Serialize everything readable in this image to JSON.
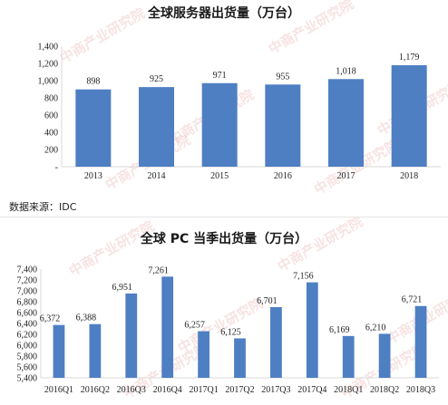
{
  "watermark": "中商产业研究院",
  "source": "数据来源：IDC",
  "colors": {
    "bar": "#4e7fc3",
    "axis": "#d9d9d9",
    "text": "#222222"
  },
  "chart_data": [
    {
      "type": "bar",
      "title": "全球服务器出货量（万台）",
      "categories": [
        "2013",
        "2014",
        "2015",
        "2016",
        "2017",
        "2018"
      ],
      "values": [
        898,
        925,
        971,
        955,
        1018,
        1179
      ],
      "value_labels": [
        "898",
        "925",
        "971",
        "955",
        "1,018",
        "1,179"
      ],
      "yticks": [
        0,
        200,
        400,
        600,
        800,
        1000,
        1200,
        1400
      ],
      "ytick_labels": [
        "-",
        "200",
        "400",
        "600",
        "800",
        "1,000",
        "1,200",
        "1,400"
      ],
      "ylim": [
        0,
        1400
      ],
      "grid": false,
      "xlabel": "",
      "ylabel": ""
    },
    {
      "type": "bar",
      "title": "全球 PC 当季出货量（万台）",
      "categories": [
        "2016Q1",
        "2016Q2",
        "2016Q3",
        "2016Q4",
        "2017Q1",
        "2017Q2",
        "2017Q3",
        "2017Q4",
        "2018Q1",
        "2018Q2",
        "2018Q3"
      ],
      "values": [
        6372,
        6388,
        6951,
        7261,
        6257,
        6125,
        6701,
        7156,
        6169,
        6210,
        6721
      ],
      "value_labels": [
        "6,372",
        "6,388",
        "6,951",
        "7,261",
        "6,257",
        "6,125",
        "6,701",
        "7,156",
        "6,169",
        "6,210",
        "6,721"
      ],
      "yticks": [
        5400,
        5600,
        5800,
        6000,
        6200,
        6400,
        6600,
        6800,
        7000,
        7200,
        7400
      ],
      "ytick_labels": [
        "5,400",
        "5,600",
        "5,800",
        "6,000",
        "6,200",
        "6,400",
        "6,600",
        "6,800",
        "7,000",
        "7,200",
        "7,400"
      ],
      "ylim": [
        5400,
        7400
      ],
      "grid": false,
      "xlabel": "",
      "ylabel": ""
    }
  ]
}
